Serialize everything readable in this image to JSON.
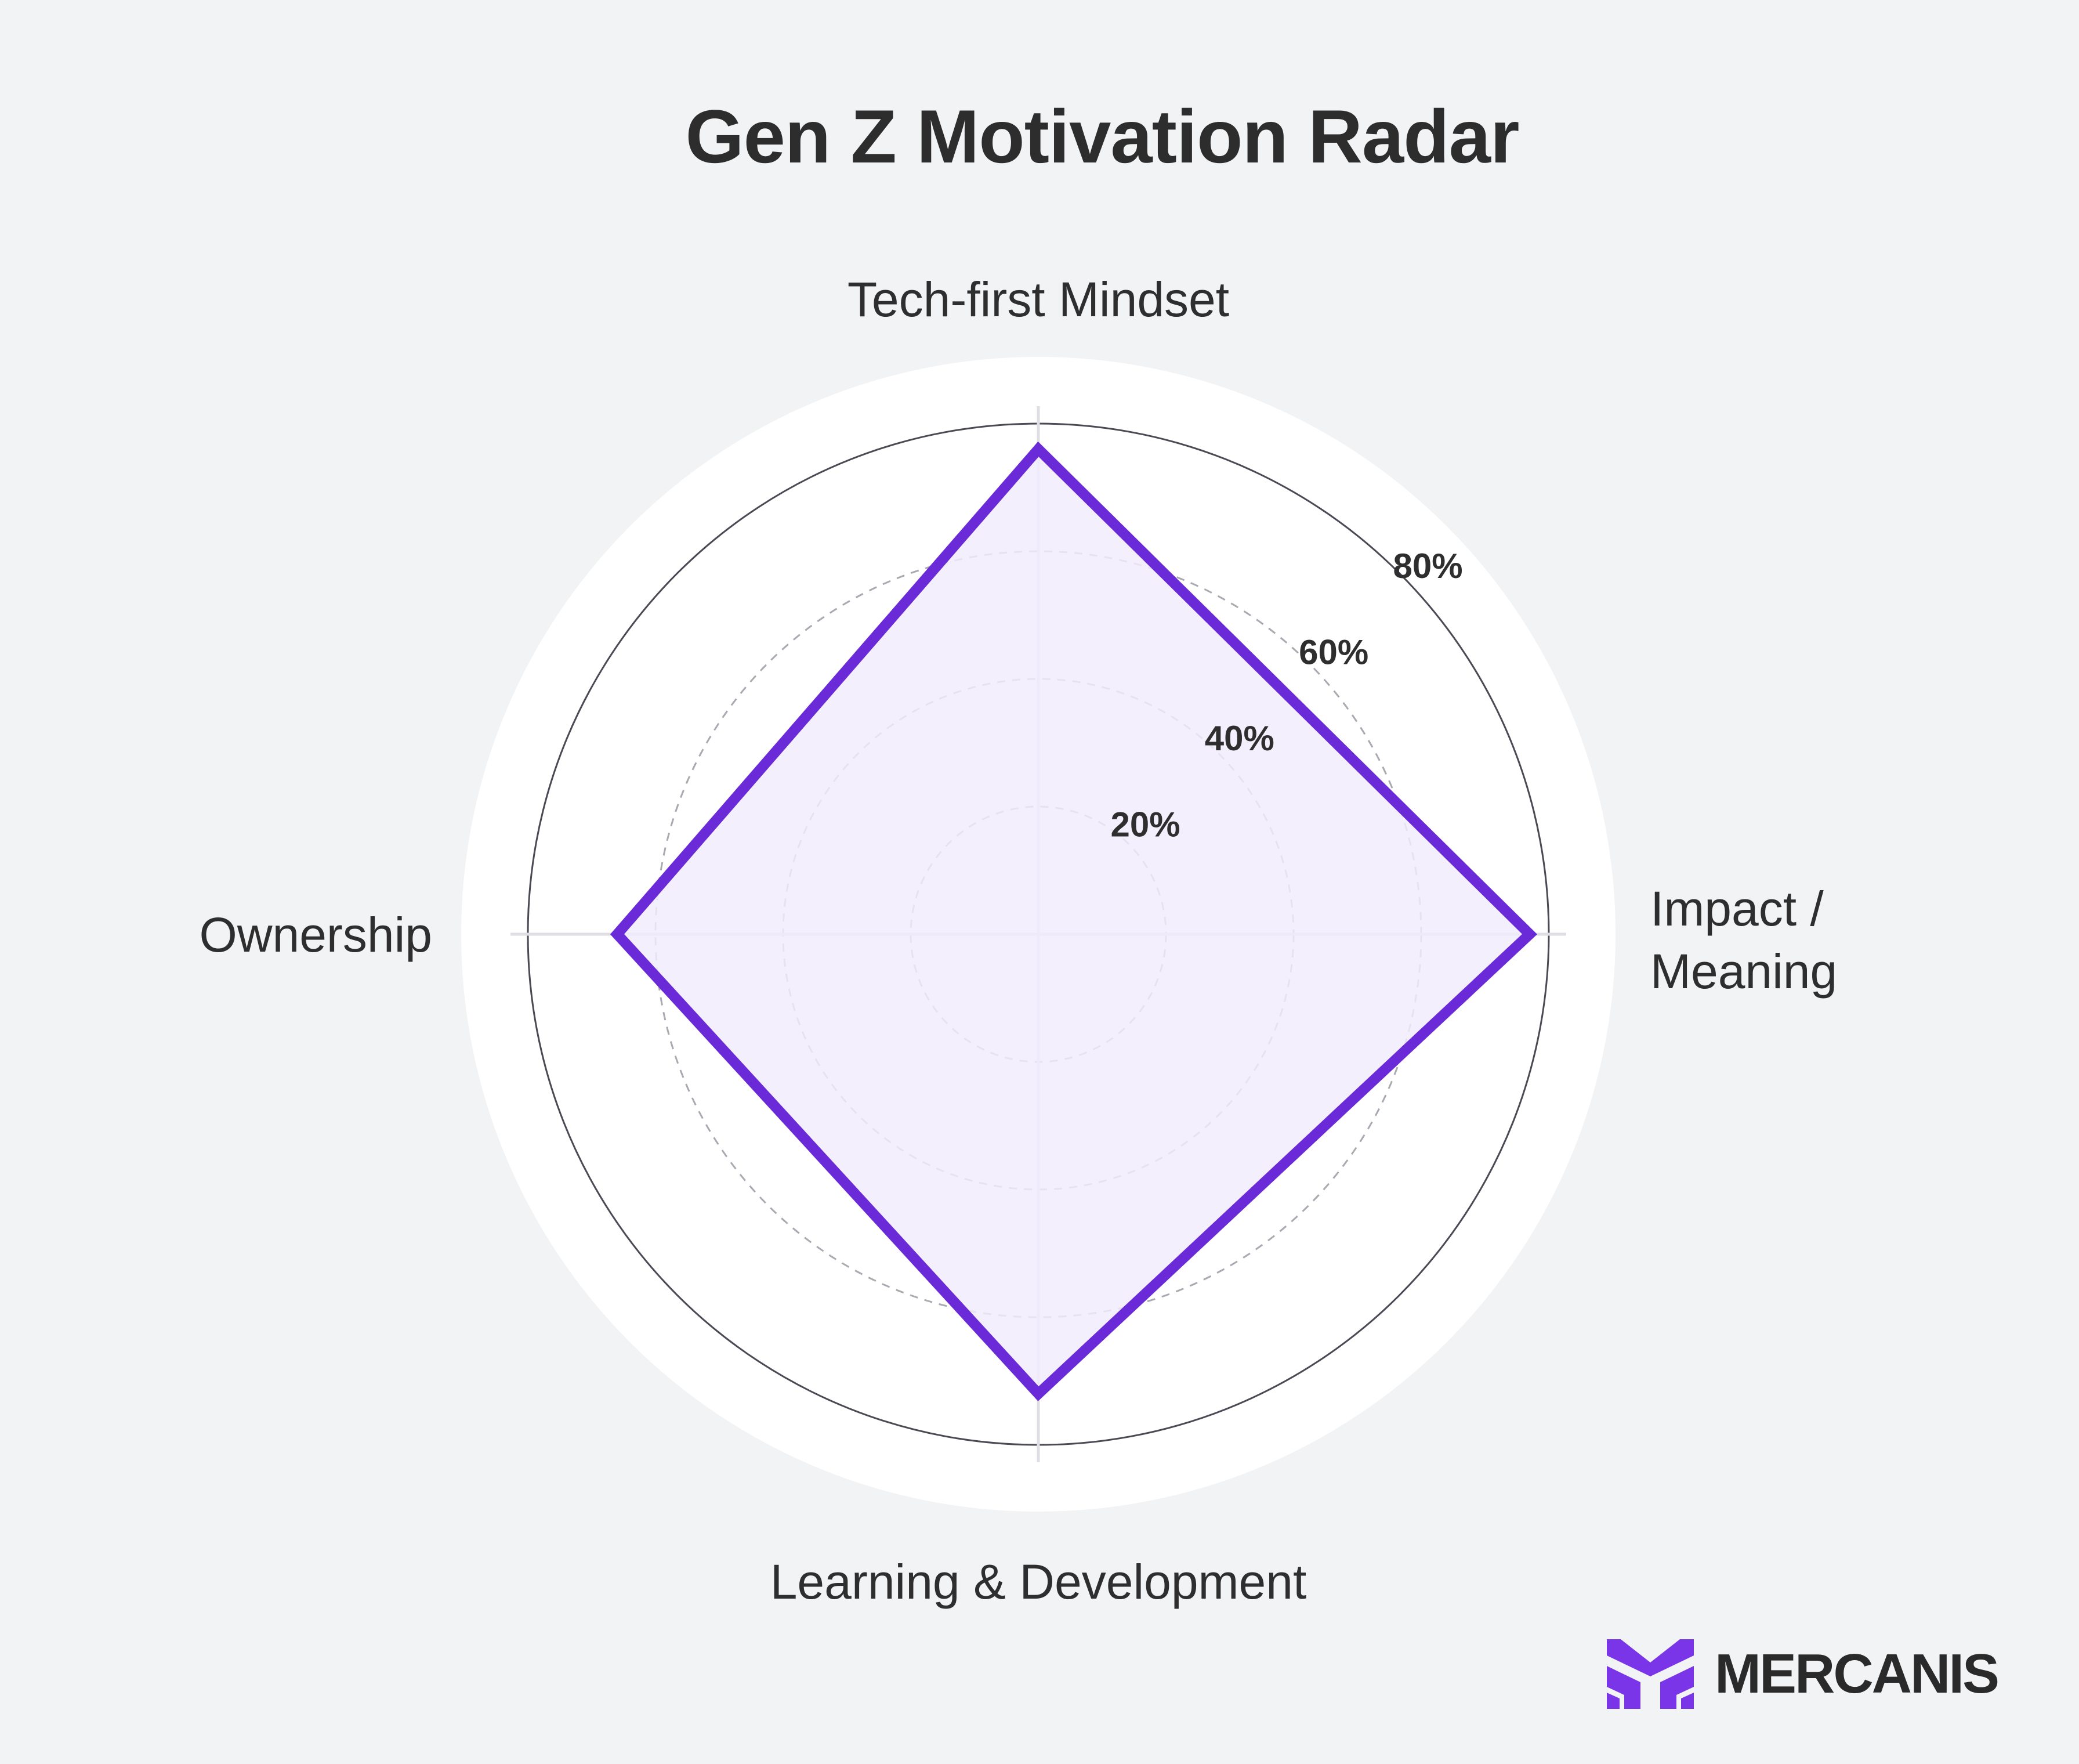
{
  "chart_data": {
    "type": "radar",
    "title": "Gen Z Motivation Radar",
    "axes": [
      "Tech-first Mindset",
      "Impact / Meaning",
      "Learning & Development",
      "Ownership"
    ],
    "series": [
      {
        "values": [
          76,
          77,
          72,
          66
        ]
      }
    ],
    "rlim": [
      0,
      80
    ],
    "rticks": [
      20,
      40,
      60,
      80
    ],
    "rtick_labels": [
      "20%",
      "40%",
      "60%",
      "80%"
    ],
    "grid": true,
    "colors": {
      "series_stroke": "#6a2ad8",
      "series_fill": "#f1ecfd",
      "grid": "#a9a9b2",
      "outer_ring": "#4a4a55",
      "plot_bg": "#ffffff",
      "page_bg": "#f2f3f5"
    }
  },
  "brand": {
    "name": "MERCANIS",
    "logo_icon": "mercanis-logo-icon",
    "logo_color": "#7a35e8"
  }
}
